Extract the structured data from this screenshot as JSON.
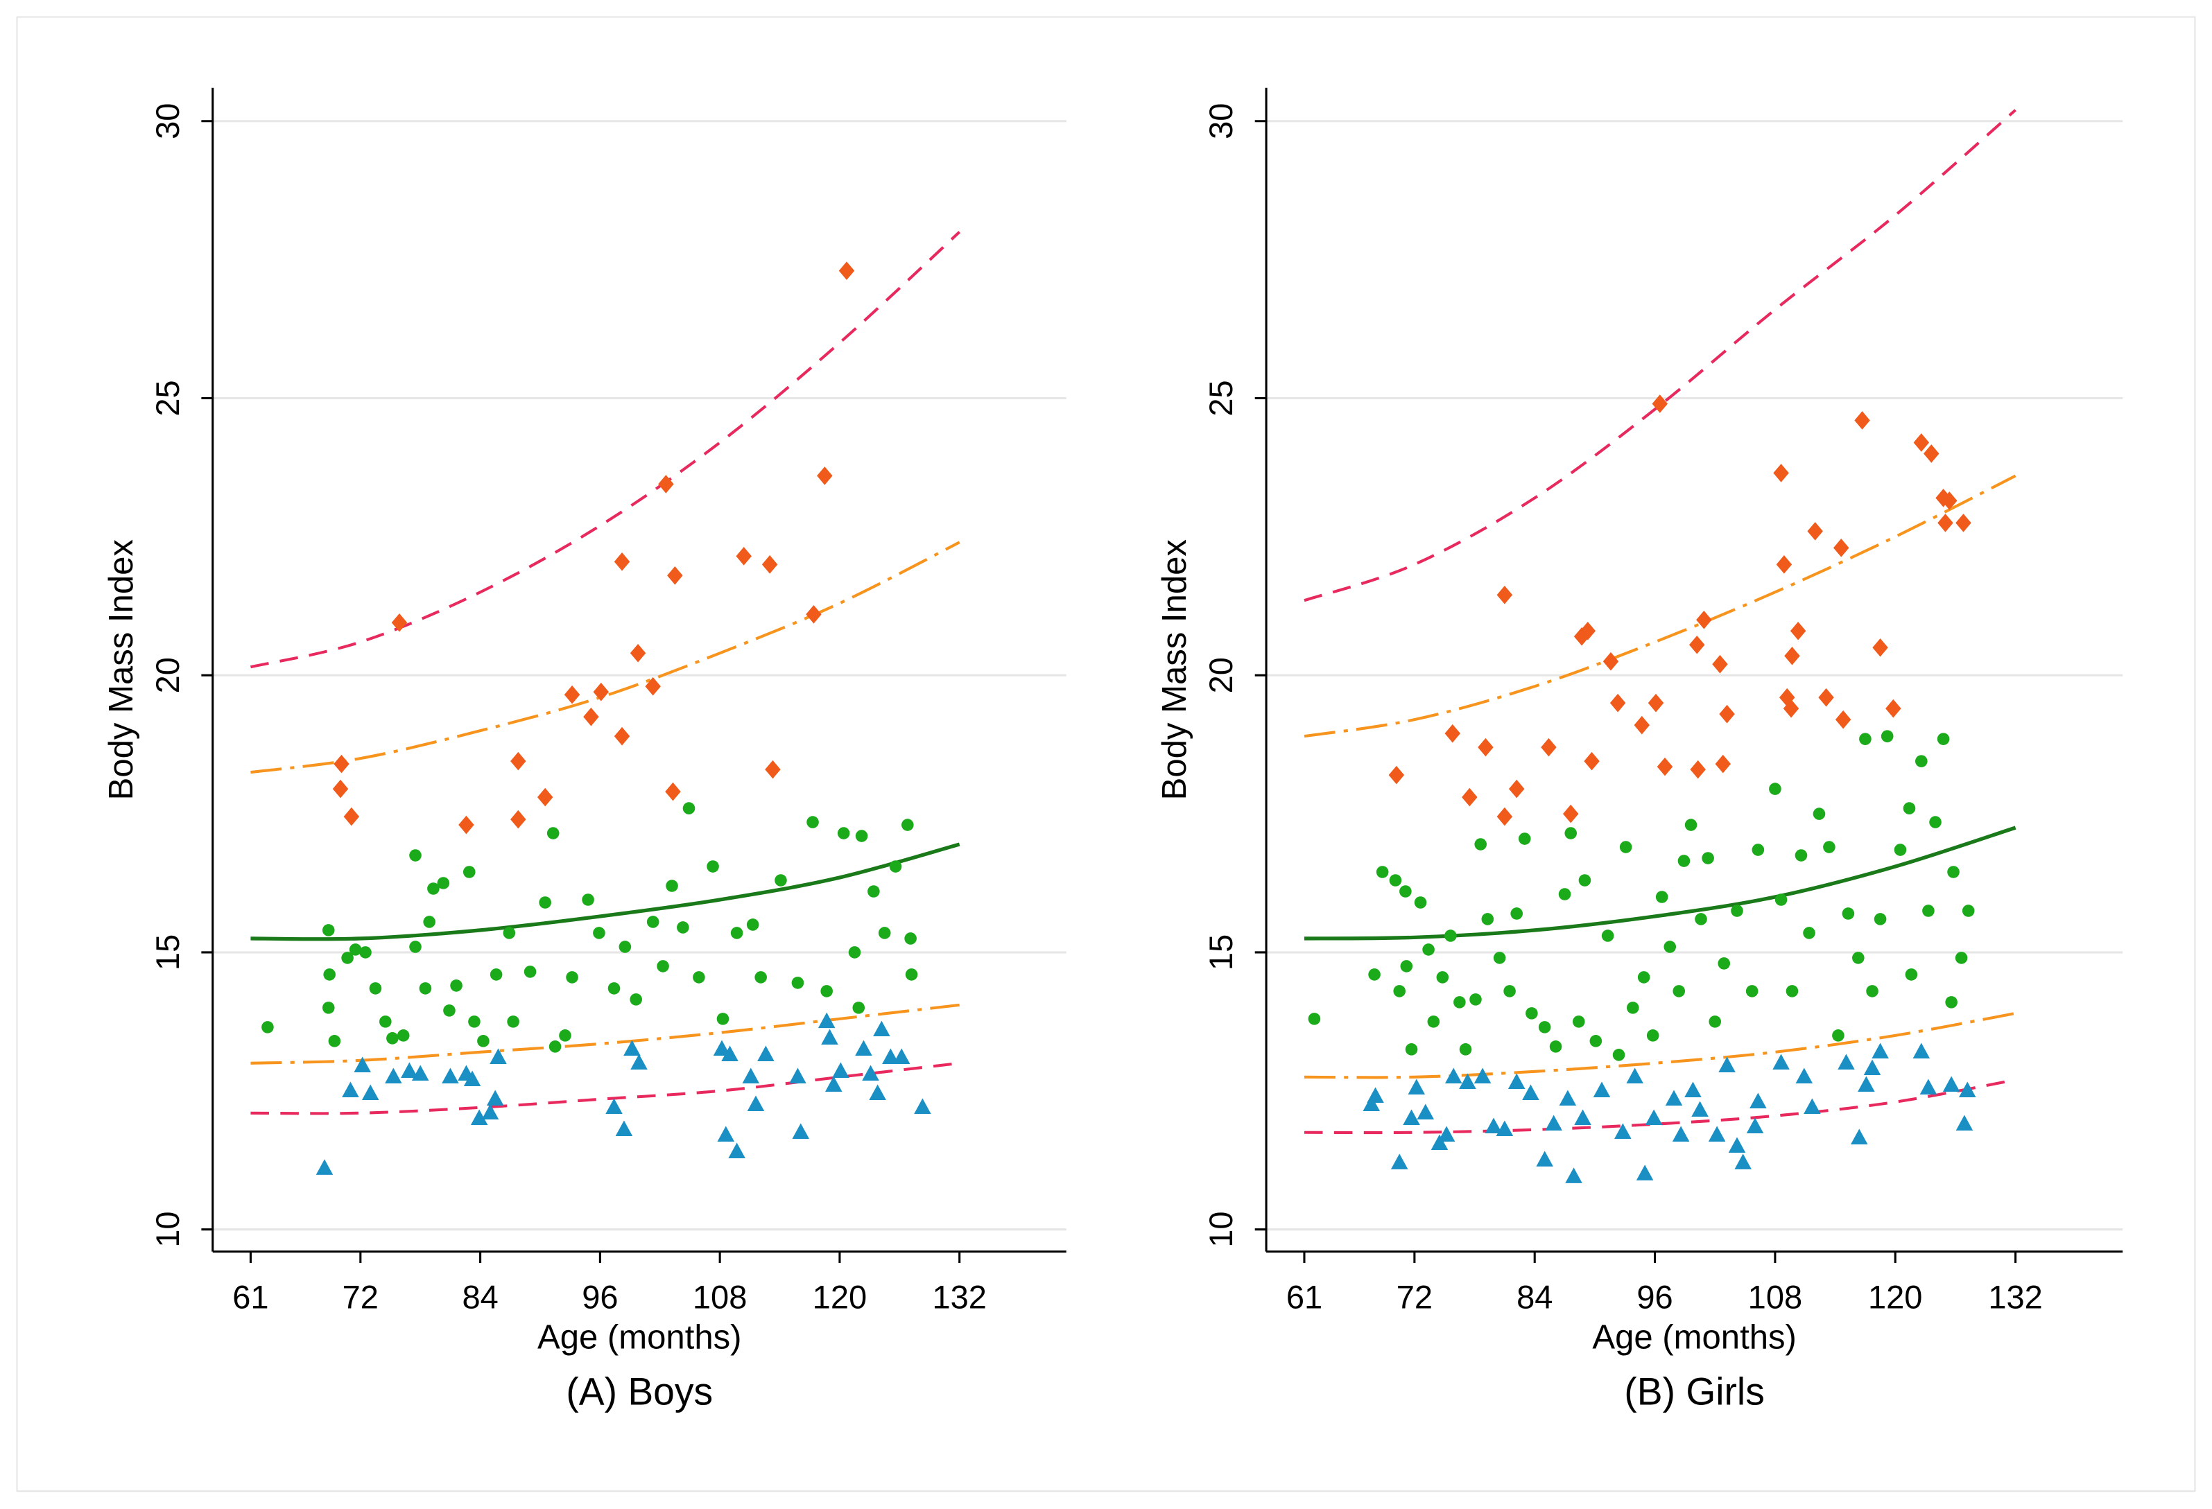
{
  "chart_data": [
    {
      "type": "scatter",
      "title": "(A) Boys",
      "x_label": "Age (months)",
      "y_label": "Body Mass Index",
      "xlim": [
        57.2,
        142.7
      ],
      "ylim": [
        9.6,
        30.6
      ],
      "xticks": [
        61,
        72,
        84,
        96,
        108,
        120,
        132
      ],
      "yticks": [
        10,
        15,
        20,
        25,
        30
      ],
      "grid": true,
      "series": [
        {
          "type": "line",
          "color": "#e8295e",
          "dash": "dash",
          "x": [
            61,
            72,
            84,
            96,
            108,
            120,
            132
          ],
          "values": [
            20.15,
            20.6,
            21.5,
            22.7,
            24.2,
            26.0,
            28.0
          ]
        },
        {
          "type": "line",
          "color": "#f7941d",
          "dash": "dashdot",
          "x": [
            61,
            72,
            84,
            96,
            108,
            120,
            132
          ],
          "values": [
            18.25,
            18.5,
            19.0,
            19.6,
            20.4,
            21.3,
            22.4
          ]
        },
        {
          "type": "line",
          "color": "#1a7a1a",
          "dash": "solid",
          "x": [
            61,
            72,
            84,
            96,
            108,
            120,
            132
          ],
          "values": [
            15.25,
            15.25,
            15.4,
            15.65,
            15.95,
            16.35,
            16.95
          ]
        },
        {
          "type": "line",
          "color": "#f7941d",
          "dash": "dashdot",
          "x": [
            61,
            72,
            84,
            96,
            108,
            120,
            132
          ],
          "values": [
            13.0,
            13.05,
            13.2,
            13.35,
            13.55,
            13.8,
            14.05
          ]
        },
        {
          "type": "line",
          "color": "#e8295e",
          "dash": "dash",
          "x": [
            61,
            72,
            84,
            96,
            108,
            120,
            132
          ],
          "values": [
            12.1,
            12.1,
            12.2,
            12.35,
            12.5,
            12.75,
            13.0
          ]
        },
        {
          "type": "scatter",
          "marker": "circle",
          "color": "#1aaa1a",
          "x": [
            62.7,
            68.8,
            68.9,
            68.8,
            69.4,
            70.7,
            71.5,
            72.5,
            73.5,
            74.5,
            75.2,
            76.3,
            77.5,
            77.5,
            78.5,
            78.9,
            79.3,
            80.3,
            80.9,
            81.6,
            82.9,
            83.4,
            84.3,
            85.6,
            86.9,
            87.3,
            89,
            90.5,
            91.3,
            91.5,
            92.5,
            93.2,
            94.8,
            95.9,
            97.4,
            98.5,
            99.6,
            101.3,
            102.3,
            103.2,
            104.3,
            104.9,
            105.9,
            107.3,
            108.3,
            109.7,
            111.3,
            112.1,
            114.1,
            115.8,
            117.3,
            118.7,
            120.4,
            121.5,
            122.2,
            123.4,
            124.5,
            125.6,
            126.8,
            127.2,
            127.1,
            121.9
          ],
          "values": [
            13.65,
            15.4,
            14.6,
            14,
            13.4,
            14.9,
            15.05,
            15,
            14.35,
            13.75,
            13.45,
            13.5,
            16.75,
            15.1,
            14.35,
            15.55,
            16.15,
            16.25,
            13.95,
            14.4,
            16.45,
            13.75,
            13.4,
            14.6,
            15.35,
            13.75,
            14.65,
            15.9,
            17.15,
            13.3,
            13.5,
            14.55,
            15.95,
            15.35,
            14.35,
            15.1,
            14.15,
            15.55,
            14.75,
            16.2,
            15.45,
            17.6,
            14.55,
            16.55,
            13.8,
            15.35,
            15.5,
            14.55,
            16.3,
            14.45,
            17.35,
            14.3,
            17.15,
            15,
            17.1,
            16.1,
            15.35,
            16.55,
            17.3,
            14.6,
            15.25,
            14
          ]
        },
        {
          "type": "scatter",
          "marker": "diamond",
          "color": "#f05a1a",
          "x": [
            70.1,
            70,
            71.1,
            75.9,
            82.6,
            87.8,
            87.8,
            90.5,
            93.2,
            95.1,
            96.1,
            98.2,
            98.2,
            99.8,
            101.3,
            102.6,
            103.5,
            103.3,
            110.4,
            113,
            113.3,
            117.4,
            118.5,
            120.7
          ],
          "values": [
            18.4,
            17.95,
            17.45,
            20.95,
            17.3,
            18.45,
            17.4,
            17.8,
            19.65,
            19.25,
            19.7,
            22.05,
            18.9,
            20.4,
            19.8,
            23.45,
            21.8,
            17.9,
            22.15,
            22,
            18.3,
            21.1,
            23.6,
            27.3
          ]
        },
        {
          "type": "scatter",
          "marker": "triangle",
          "color": "#1a8fc4",
          "x": [
            68.4,
            71,
            72.2,
            73,
            75.3,
            76.9,
            78,
            81,
            82.6,
            83.2,
            83.9,
            85,
            85.5,
            85.8,
            97.4,
            98.4,
            99.2,
            99.9,
            108.2,
            109,
            108.6,
            109.7,
            111.1,
            111.6,
            112.6,
            116.1,
            115.8,
            118.7,
            119,
            119.4,
            120.1,
            122.4,
            123.1,
            123.8,
            124.2,
            125.1,
            126.2,
            128.3
          ],
          "values": [
            11.1,
            12.5,
            12.95,
            12.45,
            12.75,
            12.85,
            12.8,
            12.75,
            12.8,
            12.7,
            12,
            12.1,
            12.35,
            13.1,
            12.2,
            11.8,
            13.25,
            13,
            13.25,
            13.15,
            11.7,
            11.4,
            12.75,
            12.25,
            13.15,
            11.75,
            12.75,
            13.75,
            13.45,
            12.6,
            12.85,
            13.25,
            12.8,
            12.45,
            13.6,
            13.1,
            13.1,
            12.2
          ]
        }
      ]
    },
    {
      "type": "scatter",
      "title": "(B) Girls",
      "x_label": "Age (months)",
      "y_label": "Body Mass Index",
      "xlim": [
        57.2,
        142.7
      ],
      "ylim": [
        9.6,
        30.6
      ],
      "xticks": [
        61,
        72,
        84,
        96,
        108,
        120,
        132
      ],
      "yticks": [
        10,
        15,
        20,
        25,
        30
      ],
      "grid": true,
      "series": [
        {
          "type": "line",
          "color": "#e8295e",
          "dash": "dash",
          "x": [
            61,
            72,
            84,
            96,
            108,
            120,
            132
          ],
          "values": [
            21.35,
            22.0,
            23.2,
            24.8,
            26.6,
            28.3,
            30.2
          ]
        },
        {
          "type": "line",
          "color": "#f7941d",
          "dash": "dashdot",
          "x": [
            61,
            72,
            84,
            96,
            108,
            120,
            132
          ],
          "values": [
            18.9,
            19.2,
            19.8,
            20.6,
            21.5,
            22.5,
            23.6
          ]
        },
        {
          "type": "line",
          "color": "#1a7a1a",
          "dash": "solid",
          "x": [
            61,
            72,
            84,
            96,
            108,
            120,
            132
          ],
          "values": [
            15.25,
            15.27,
            15.4,
            15.65,
            16.0,
            16.55,
            17.25
          ]
        },
        {
          "type": "line",
          "color": "#f7941d",
          "dash": "dashdot",
          "x": [
            61,
            72,
            84,
            96,
            108,
            120,
            132
          ],
          "values": [
            12.75,
            12.75,
            12.85,
            13.0,
            13.2,
            13.5,
            13.9
          ]
        },
        {
          "type": "line",
          "color": "#e8295e",
          "dash": "dash",
          "x": [
            61,
            72,
            84,
            96,
            108,
            120,
            132
          ],
          "values": [
            11.75,
            11.75,
            11.8,
            11.9,
            12.05,
            12.3,
            12.7
          ]
        },
        {
          "type": "scatter",
          "marker": "circle",
          "color": "#1aaa1a",
          "x": [
            62,
            68,
            68.8,
            70.1,
            71.1,
            70.5,
            71.2,
            71.7,
            72.6,
            73.4,
            73.9,
            74.8,
            75.6,
            76.5,
            77.1,
            78.1,
            78.6,
            79.3,
            80.5,
            81.5,
            82.2,
            83,
            83.7,
            85,
            86.1,
            87,
            87.6,
            88.4,
            89,
            90.1,
            91.3,
            92.4,
            93.1,
            93.8,
            94.9,
            95.8,
            96.7,
            97.5,
            98.4,
            98.9,
            99.6,
            100.6,
            101.3,
            102,
            102.9,
            104.2,
            105.7,
            106.3,
            108,
            108.6,
            109.7,
            110.6,
            111.4,
            112.4,
            113.4,
            114.3,
            115.3,
            116.3,
            117,
            117.7,
            118.5,
            119.2,
            120.5,
            121.4,
            121.6,
            122.6,
            123.3,
            124,
            124.8,
            125.6,
            125.8,
            126.6,
            127.3
          ],
          "values": [
            13.8,
            14.6,
            16.45,
            16.3,
            16.1,
            14.3,
            14.75,
            13.25,
            15.9,
            15.05,
            13.75,
            14.55,
            15.3,
            14.1,
            13.25,
            14.15,
            16.95,
            15.6,
            14.9,
            14.3,
            15.7,
            17.05,
            13.9,
            13.65,
            13.3,
            16.05,
            17.15,
            13.75,
            16.3,
            13.4,
            15.3,
            13.15,
            16.9,
            14,
            14.55,
            13.5,
            16,
            15.1,
            14.3,
            16.65,
            17.3,
            15.6,
            16.7,
            13.75,
            14.8,
            15.75,
            14.3,
            16.85,
            17.95,
            15.95,
            14.3,
            16.75,
            15.35,
            17.5,
            16.9,
            13.5,
            15.7,
            14.9,
            18.85,
            14.3,
            15.6,
            18.9,
            16.85,
            17.6,
            14.6,
            18.45,
            15.75,
            17.35,
            18.85,
            14.1,
            16.45,
            14.9,
            15.75
          ]
        },
        {
          "type": "scatter",
          "marker": "diamond",
          "color": "#f05a1a",
          "x": [
            70.2,
            75.8,
            77.5,
            79.1,
            81,
            81,
            82.2,
            85.4,
            87.6,
            88.7,
            89.3,
            89.7,
            91.6,
            92.3,
            94.7,
            96.1,
            96.5,
            97,
            100.2,
            100.3,
            100.9,
            102.5,
            102.8,
            103.2,
            108.6,
            108.9,
            109.2,
            109.6,
            109.7,
            110.3,
            112,
            113.1,
            114.6,
            114.8,
            116.7,
            118.5,
            119.8,
            122.6,
            123.6,
            124.8,
            125,
            125.4,
            126.8
          ],
          "values": [
            18.2,
            18.95,
            17.8,
            18.7,
            21.45,
            17.45,
            17.95,
            18.7,
            17.5,
            20.7,
            20.8,
            18.45,
            20.25,
            19.5,
            19.1,
            19.5,
            24.9,
            18.35,
            20.55,
            18.3,
            21,
            20.2,
            18.4,
            19.3,
            23.65,
            22,
            19.6,
            19.4,
            20.35,
            20.8,
            22.6,
            19.6,
            22.3,
            19.2,
            24.6,
            20.5,
            19.4,
            24.2,
            24,
            23.2,
            22.75,
            23.15,
            22.75
          ]
        },
        {
          "type": "scatter",
          "marker": "triangle",
          "color": "#1a8fc4",
          "x": [
            67.7,
            68.1,
            70.5,
            71.7,
            72.2,
            73.1,
            74.5,
            75.2,
            75.9,
            77.3,
            78.8,
            79.9,
            81,
            82.2,
            83.6,
            85,
            85.9,
            87.3,
            87.9,
            88.8,
            90.7,
            92.8,
            94,
            95,
            95.9,
            97.9,
            98.6,
            99.8,
            100.5,
            102.2,
            103.2,
            104.2,
            104.8,
            106,
            106.3,
            108.6,
            110.9,
            111.7,
            115.1,
            116.4,
            117.1,
            117.7,
            118.5,
            122.6,
            123.3,
            125.6,
            126.9,
            127.2
          ],
          "values": [
            12.25,
            12.4,
            11.2,
            12,
            12.55,
            12.1,
            11.55,
            11.7,
            12.75,
            12.65,
            12.75,
            11.85,
            11.8,
            12.65,
            12.45,
            11.25,
            11.9,
            12.35,
            10.95,
            12,
            12.5,
            11.75,
            12.75,
            11,
            12,
            12.35,
            11.7,
            12.5,
            12.15,
            11.7,
            12.95,
            11.5,
            11.2,
            11.85,
            12.3,
            13,
            12.75,
            12.2,
            13,
            11.65,
            12.6,
            12.9,
            13.2,
            13.2,
            12.55,
            12.6,
            11.9,
            12.5
          ]
        }
      ]
    }
  ]
}
